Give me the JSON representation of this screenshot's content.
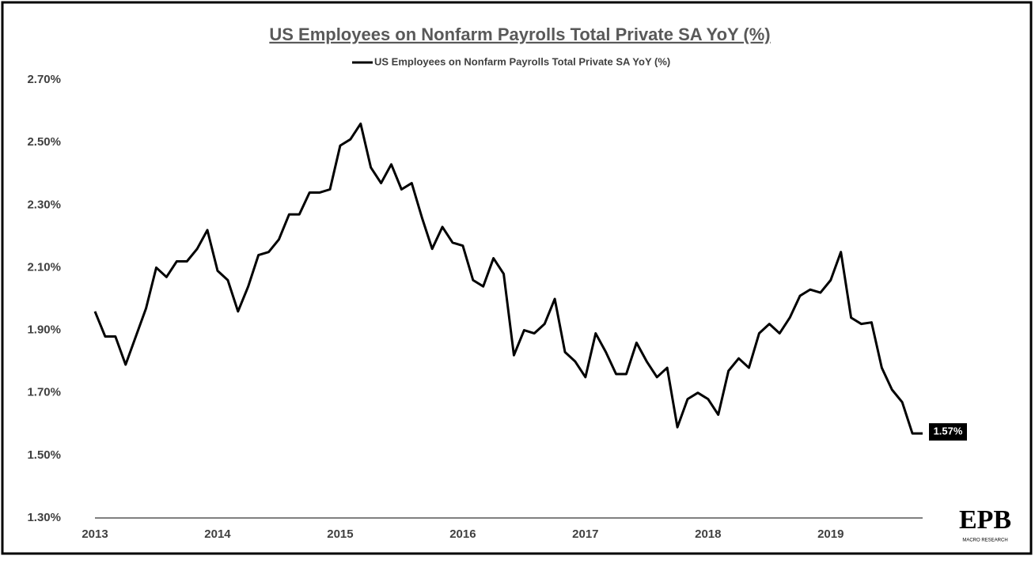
{
  "chart_data": {
    "type": "line",
    "title": "US Employees on Nonfarm Payrolls Total Private SA YoY (%)",
    "logo": {
      "text": "EPB",
      "subtext": "MACRO RESEARCH"
    },
    "legend": "top",
    "categories": [
      "2013",
      null,
      null,
      null,
      null,
      null,
      null,
      null,
      null,
      null,
      null,
      null,
      "2014",
      null,
      null,
      null,
      null,
      null,
      null,
      null,
      null,
      null,
      null,
      null,
      "2015",
      null,
      null,
      null,
      null,
      null,
      null,
      null,
      null,
      null,
      null,
      null,
      "2016",
      null,
      null,
      null,
      null,
      null,
      null,
      null,
      null,
      null,
      null,
      null,
      "2017",
      null,
      null,
      null,
      null,
      null,
      null,
      null,
      null,
      null,
      null,
      null,
      "2018",
      null,
      null,
      null,
      null,
      null,
      null,
      null,
      null,
      null,
      null,
      null,
      "2019",
      null,
      null,
      null,
      null,
      null,
      null,
      null,
      null,
      null
    ],
    "series": [
      {
        "name": "US Employees on Nonfarm Payrolls Total Private SA YoY (%)",
        "color": "#000000",
        "values": [
          1.96,
          1.88,
          1.88,
          1.79,
          1.88,
          1.97,
          2.1,
          2.07,
          2.12,
          2.12,
          2.16,
          2.22,
          2.09,
          2.06,
          1.96,
          2.04,
          2.14,
          2.15,
          2.19,
          2.27,
          2.27,
          2.34,
          2.34,
          2.35,
          2.49,
          2.51,
          2.56,
          2.42,
          2.37,
          2.43,
          2.35,
          2.37,
          2.26,
          2.16,
          2.23,
          2.18,
          2.17,
          2.06,
          2.04,
          2.13,
          2.08,
          1.82,
          1.9,
          1.89,
          1.92,
          2.0,
          1.83,
          1.8,
          1.75,
          1.89,
          1.83,
          1.76,
          1.76,
          1.86,
          1.8,
          1.75,
          1.78,
          1.59,
          1.68,
          1.7,
          1.68,
          1.63,
          1.77,
          1.81,
          1.78,
          1.89,
          1.92,
          1.89,
          1.94,
          2.01,
          2.03,
          2.02,
          2.06,
          2.15,
          1.94,
          1.92,
          1.925,
          1.78,
          1.71,
          1.67,
          1.57,
          1.57
        ],
        "value_labels": [
          null,
          null,
          null,
          null,
          null,
          null,
          null,
          null,
          null,
          null,
          null,
          null,
          null,
          null,
          null,
          null,
          null,
          null,
          null,
          null,
          null,
          null,
          null,
          null,
          null,
          null,
          null,
          null,
          null,
          null,
          null,
          null,
          null,
          null,
          null,
          null,
          null,
          null,
          null,
          null,
          null,
          null,
          null,
          null,
          null,
          null,
          null,
          null,
          null,
          null,
          null,
          null,
          null,
          null,
          null,
          null,
          null,
          null,
          null,
          null,
          null,
          null,
          null,
          null,
          null,
          null,
          null,
          null,
          null,
          null,
          null,
          null,
          null,
          null,
          null,
          null,
          null,
          null,
          null,
          null,
          null,
          "1.57%"
        ]
      }
    ],
    "ylim": [
      1.3,
      2.7
    ],
    "yticks": [
      {
        "value": 1.3,
        "label": "1.30%"
      },
      {
        "value": 1.5,
        "label": "1.50%"
      },
      {
        "value": 1.7,
        "label": "1.70%"
      },
      {
        "value": 1.9,
        "label": "1.90%"
      },
      {
        "value": 2.1,
        "label": "2.10%"
      },
      {
        "value": 2.3,
        "label": "2.30%"
      },
      {
        "value": 2.5,
        "label": "2.50%"
      },
      {
        "value": 2.7,
        "label": "2.70%"
      }
    ],
    "grid": false
  }
}
